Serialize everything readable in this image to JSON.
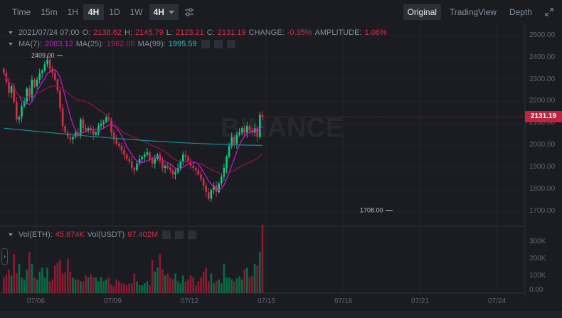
{
  "toolbar": {
    "intervals": [
      "Time",
      "15m",
      "1H",
      "4H",
      "1D",
      "1W"
    ],
    "active_interval": "4H",
    "dropdown_value": "4H",
    "settings_icon": "sliders-icon",
    "views": [
      "Original",
      "TradingView",
      "Depth"
    ],
    "active_view": "Original",
    "fullscreen_icon": "expand-icon"
  },
  "ohlc": {
    "datetime": "2021/07/24 07:00",
    "open_label": "O:",
    "open": "2138.62",
    "high_label": "H:",
    "high": "2145.79",
    "low_label": "L:",
    "low": "2123.21",
    "close_label": "C:",
    "close": "2131.19",
    "change_label": "CHANGE:",
    "change": "-0.35%",
    "amplitude_label": "AMPLITUDE:",
    "amplitude": "1.06%"
  },
  "ma": {
    "ma7_label": "MA(7):",
    "ma7": "2083.12",
    "ma25_label": "MA(25):",
    "ma25": "1962.06",
    "ma99_label": "MA(99):",
    "ma99": "1995.59"
  },
  "volume": {
    "eth_label": "Vol(ETH):",
    "eth": "45.674K",
    "usdt_label": "Vol(USDT)",
    "usdt": "97.402M"
  },
  "price_axis": [
    "2500.00",
    "2400.00",
    "2300.00",
    "2200.00",
    "2100.00",
    "2000.00",
    "1900.00",
    "1800.00",
    "1700.00"
  ],
  "current_price_tag": "2131.19",
  "volume_axis": [
    "300K",
    "200K",
    "100K",
    "0.00"
  ],
  "date_axis": [
    "07/06",
    "07/09",
    "07/12",
    "07/15",
    "07/18",
    "07/21",
    "07/24"
  ],
  "annotations": {
    "high_marker": "2409.00",
    "low_marker": "1708.00"
  },
  "watermark": "BINANCE",
  "colors": {
    "up": "#0ecb81",
    "down": "#cf304a",
    "vol_up": "#086c47",
    "vol_down": "#8d1a33",
    "ma7": "#d016d8",
    "ma25": "#8e1550",
    "ma99": "#1a8b8f",
    "bg": "#1b1c21"
  },
  "chart_data": {
    "type": "candlestick",
    "closes": [
      2330,
      2290,
      2240,
      2270,
      2200,
      2120,
      2130,
      2180,
      2200,
      2260,
      2220,
      2300,
      2270,
      2300,
      2330,
      2340,
      2370,
      2390,
      2350,
      2330,
      2300,
      2250,
      2170,
      2090,
      2060,
      2040,
      2030,
      2040,
      2060,
      2050,
      2120,
      2080,
      2070,
      2080,
      2070,
      2050,
      2060,
      2090,
      2100,
      2110,
      2130,
      2120,
      2060,
      2030,
      2010,
      2000,
      1980,
      1960,
      1940,
      1930,
      1900,
      1890,
      1920,
      1940,
      1950,
      1960,
      1970,
      1940,
      1920,
      1940,
      1960,
      1930,
      1900,
      1910,
      1900,
      1890,
      1870,
      1880,
      1900,
      1930,
      1960,
      1950,
      1930,
      1910,
      1900,
      1890,
      1870,
      1850,
      1820,
      1790,
      1760,
      1800,
      1820,
      1790,
      1830,
      1860,
      1900,
      1950,
      2000,
      2040,
      2010,
      2050,
      2060,
      2080,
      2060,
      2090,
      2070,
      2060,
      2080,
      2040,
      2140,
      2131
    ],
    "volumes": [
      80,
      95,
      120,
      90,
      200,
      100,
      150,
      80,
      70,
      120,
      210,
      150,
      80,
      70,
      110,
      130,
      80,
      130,
      60,
      70,
      140,
      155,
      170,
      100,
      105,
      175,
      110,
      80,
      70,
      70,
      60,
      60,
      90,
      80,
      95,
      80,
      80,
      60,
      80,
      60,
      70,
      80,
      45,
      35,
      70,
      60,
      50,
      50,
      40,
      50,
      50,
      100,
      60,
      40,
      40,
      50,
      60,
      40,
      170,
      110,
      130,
      200,
      120,
      90,
      100,
      80,
      70,
      100,
      60,
      50,
      90,
      60,
      70,
      90,
      80,
      40,
      60,
      80,
      110,
      130,
      60,
      100,
      50,
      60,
      70,
      50,
      150,
      80,
      80,
      70,
      60,
      75,
      85,
      70,
      120,
      130,
      80,
      90,
      150,
      140,
      210,
      350
    ]
  }
}
